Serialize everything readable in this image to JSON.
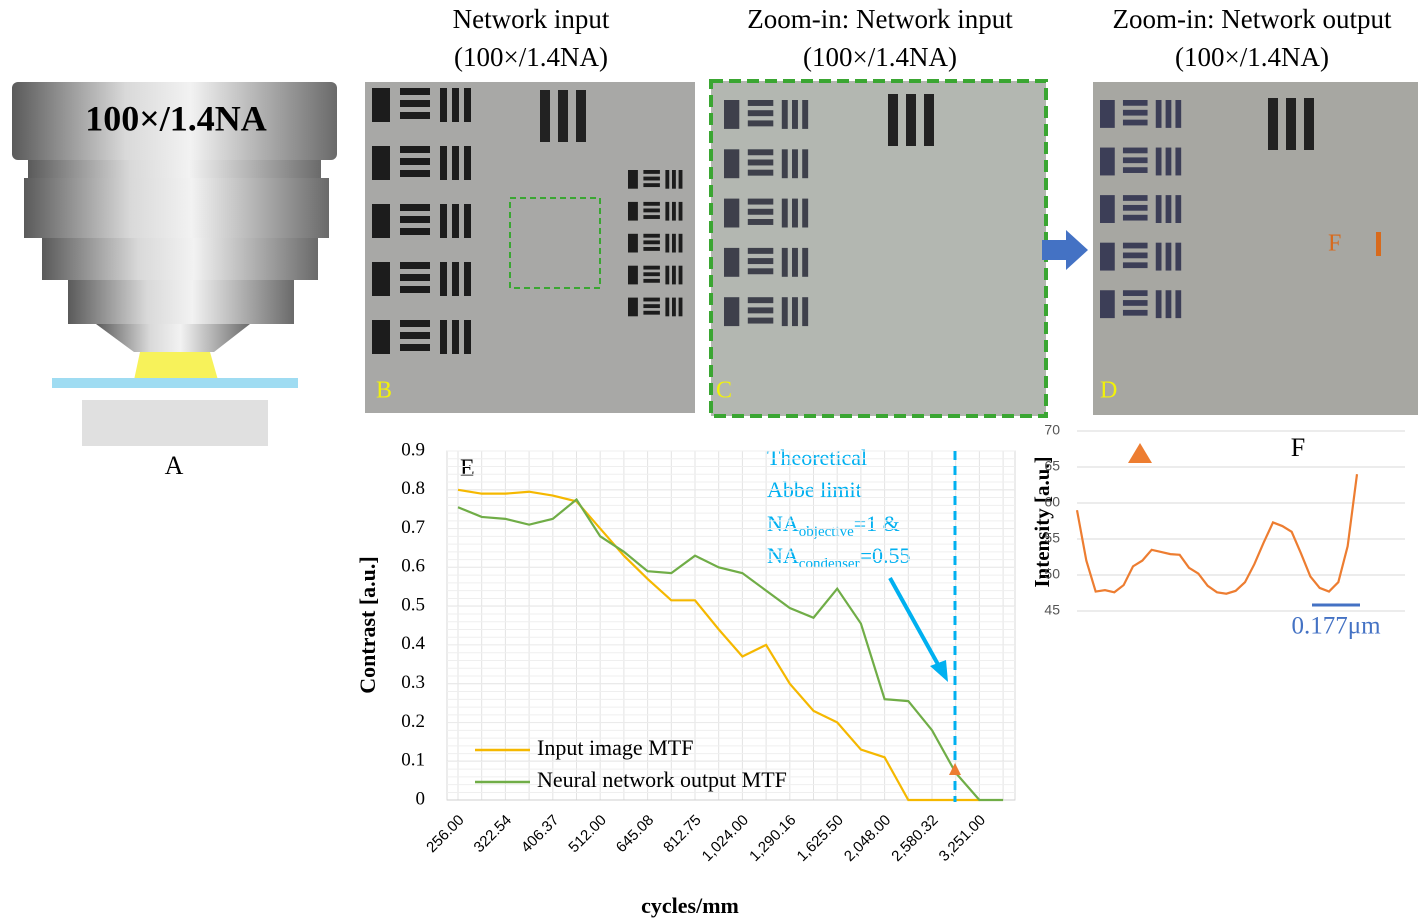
{
  "figure": {
    "panel_a": {
      "lens_label": "100×/1.4NA",
      "letter": "A"
    },
    "images": [
      {
        "title": [
          "Network input",
          "(100×/1.4NA)"
        ],
        "letter": "B"
      },
      {
        "title": [
          "Zoom-in: Network input",
          "(100×/1.4NA)"
        ],
        "letter": "C"
      },
      {
        "title": [
          "Zoom-in: Network output",
          "(100×/1.4NA)"
        ],
        "letter": "D",
        "marker": "F"
      }
    ]
  },
  "chart_data": [
    {
      "type": "line",
      "panel_label": "E",
      "x_label": "cycles/mm",
      "y_label": "Contrast [a.u.]",
      "categories": [
        "256.00",
        null,
        "322.54",
        null,
        "406.37",
        null,
        "512.00",
        null,
        "645.08",
        null,
        "812.75",
        null,
        "1,024.00",
        null,
        "1,290.16",
        null,
        "1,625.50",
        null,
        "2,048.00",
        null,
        "2,580.32",
        null,
        "3,251.00",
        null
      ],
      "series": [
        {
          "name": "Input image MTF",
          "color": "#f5b800",
          "values": [
            0.8,
            0.79,
            0.79,
            0.795,
            0.785,
            0.77,
            0.7,
            0.63,
            0.57,
            0.515,
            0.515,
            0.44,
            0.37,
            0.4,
            0.3,
            0.23,
            0.2,
            0.13,
            0.11,
            0,
            0,
            0,
            0,
            null
          ]
        },
        {
          "name": "Neural network output MTF",
          "color": "#70ad47",
          "values": [
            0.755,
            0.73,
            0.725,
            0.71,
            0.725,
            0.775,
            0.68,
            0.64,
            0.59,
            0.585,
            0.63,
            0.6,
            0.585,
            0.54,
            0.495,
            0.47,
            0.545,
            0.455,
            0.26,
            0.255,
            0.18,
            0.07,
            0,
            0
          ]
        }
      ],
      "ylim": [
        0,
        0.9
      ],
      "yticks": [
        0,
        0.1,
        0.2,
        0.3,
        0.4,
        0.5,
        0.6,
        0.7,
        0.8,
        0.9
      ],
      "grid": true,
      "legend": "lower left",
      "annotation": {
        "color": "#00b0f0",
        "lines": [
          "Theoretical",
          "Abbe limit"
        ],
        "na_objective": [
          "NA",
          "objective",
          "=1 &"
        ],
        "na_condenser": [
          "NA",
          "condenser",
          "=0.55"
        ]
      }
    },
    {
      "type": "line",
      "title": "F",
      "y_label": "Intensity [a.u.]",
      "color": "#ed7d31",
      "values": [
        59,
        52,
        47.7,
        47.9,
        47.6,
        48.6,
        51.2,
        52,
        53.5,
        53.2,
        52.9,
        52.8,
        51,
        50.2,
        48.5,
        47.6,
        47.4,
        47.8,
        49,
        51.5,
        54.5,
        57.3,
        56.8,
        56,
        53,
        49.8,
        48.2,
        47.7,
        49,
        54,
        64
      ],
      "ylim": [
        45,
        70
      ],
      "yticks": [
        45,
        50,
        55,
        60,
        65,
        70
      ],
      "grid": true,
      "scale_bar": "0.177μm",
      "scale_bar_color": "#4472c4"
    }
  ]
}
